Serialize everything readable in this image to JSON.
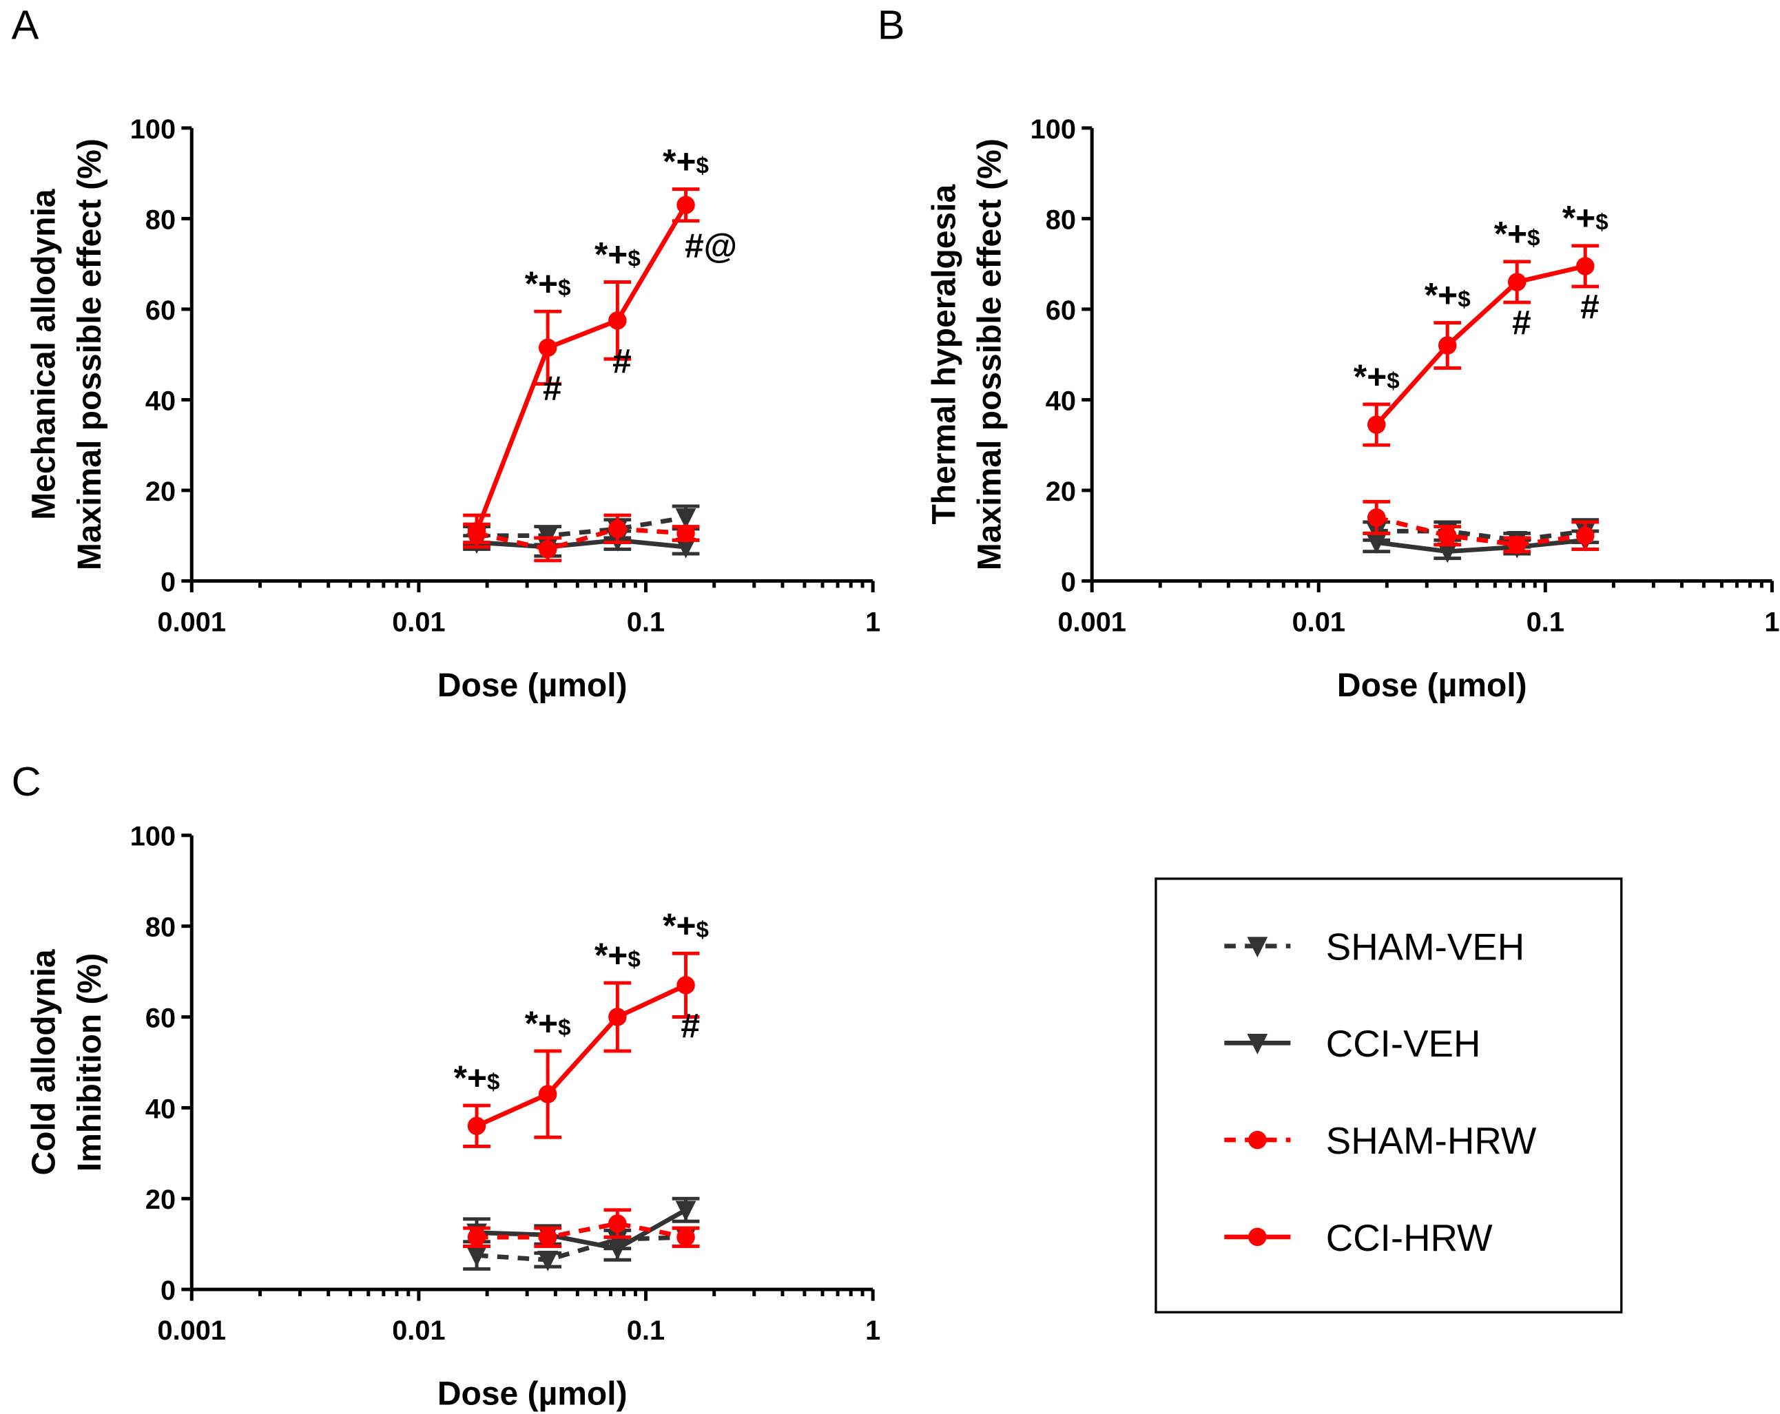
{
  "colors": {
    "veh": "#333333",
    "hrw": "#ff0000"
  },
  "legend": [
    {
      "name": "SHAM-VEH",
      "color": "#333333",
      "dashed": true,
      "marker": "triangle-down"
    },
    {
      "name": "CCI-VEH",
      "color": "#333333",
      "dashed": false,
      "marker": "triangle-down"
    },
    {
      "name": "SHAM-HRW",
      "color": "#ff0000",
      "dashed": true,
      "marker": "circle"
    },
    {
      "name": "CCI-HRW",
      "color": "#ff0000",
      "dashed": false,
      "marker": "circle"
    }
  ],
  "chart_data": [
    {
      "panel": "A",
      "type": "line",
      "xscale": "log",
      "xlim": [
        0.001,
        1
      ],
      "ylim": [
        0,
        100
      ],
      "xlabel": "Dose (µmol)",
      "ylabel": [
        "Mechanical allodynia",
        "Maximal possible effect (%)"
      ],
      "xticks": [
        "0.001",
        "0.01",
        "0.1",
        "1"
      ],
      "yticks": [
        "0",
        "20",
        "40",
        "60",
        "80",
        "100"
      ],
      "x": [
        0.018,
        0.037,
        0.075,
        0.15
      ],
      "series": [
        {
          "name": "SHAM-VEH",
          "values": [
            10,
            10,
            11.5,
            14
          ],
          "err": [
            2,
            2,
            2,
            2.5
          ]
        },
        {
          "name": "CCI-VEH",
          "values": [
            8.5,
            7.5,
            9,
            7.5
          ],
          "err": [
            1.5,
            2,
            2,
            1.5
          ]
        },
        {
          "name": "SHAM-HRW",
          "values": [
            10.5,
            7,
            11.5,
            10.5
          ],
          "err": [
            2,
            2.5,
            3,
            1.5
          ]
        },
        {
          "name": "CCI-HRW",
          "values": [
            11,
            51.5,
            57.5,
            83
          ],
          "err": [
            3.5,
            8,
            8.5,
            3.5
          ]
        }
      ],
      "annotations_above": [
        "",
        "*+$",
        "*+$",
        "*+$"
      ],
      "annotations_below": [
        "",
        "#",
        "#",
        "#@"
      ]
    },
    {
      "panel": "B",
      "type": "line",
      "xscale": "log",
      "xlim": [
        0.001,
        1
      ],
      "ylim": [
        0,
        100
      ],
      "xlabel": "Dose (µmol)",
      "ylabel": [
        "Thermal hyperalgesia",
        "Maximal possible effect (%)"
      ],
      "xticks": [
        "0.001",
        "0.01",
        "0.1",
        "1"
      ],
      "yticks": [
        "0",
        "20",
        "40",
        "60",
        "80",
        "100"
      ],
      "x": [
        0.018,
        0.037,
        0.075,
        0.15
      ],
      "series": [
        {
          "name": "SHAM-VEH",
          "values": [
            11,
            11,
            9,
            11
          ],
          "err": [
            2,
            2,
            1.5,
            2.5
          ]
        },
        {
          "name": "CCI-VEH",
          "values": [
            8.5,
            6.5,
            7.5,
            9
          ],
          "err": [
            2,
            1.5,
            1.5,
            2
          ]
        },
        {
          "name": "SHAM-HRW",
          "values": [
            14,
            10,
            8,
            10
          ],
          "err": [
            3.5,
            2,
            1.5,
            3
          ]
        },
        {
          "name": "CCI-HRW",
          "values": [
            34.5,
            52,
            66,
            69.5
          ],
          "err": [
            4.5,
            5,
            4.5,
            4.5
          ]
        }
      ],
      "annotations_above": [
        "*+$",
        "*+$",
        "*+$",
        "*+$"
      ],
      "annotations_below": [
        "",
        "",
        "#",
        "#"
      ]
    },
    {
      "panel": "C",
      "type": "line",
      "xscale": "log",
      "xlim": [
        0.001,
        1
      ],
      "ylim": [
        0,
        100
      ],
      "xlabel": "Dose (µmol)",
      "ylabel": [
        "Cold allodynia",
        "Imhibition (%)"
      ],
      "xticks": [
        "0.001",
        "0.01",
        "0.1",
        "1"
      ],
      "yticks": [
        "0",
        "20",
        "40",
        "60",
        "80",
        "100"
      ],
      "x": [
        0.018,
        0.037,
        0.075,
        0.15
      ],
      "series": [
        {
          "name": "SHAM-VEH",
          "values": [
            7.5,
            6.5,
            11,
            11.5
          ],
          "err": [
            3,
            1.5,
            2,
            2
          ]
        },
        {
          "name": "CCI-VEH",
          "values": [
            12.5,
            12,
            9,
            17.5
          ],
          "err": [
            3,
            2,
            2.5,
            2.5
          ]
        },
        {
          "name": "SHAM-HRW",
          "values": [
            11.5,
            11.5,
            14.5,
            11.5
          ],
          "err": [
            2,
            2,
            3,
            2
          ]
        },
        {
          "name": "CCI-HRW",
          "values": [
            36,
            43,
            60,
            67
          ],
          "err": [
            4.5,
            9.5,
            7.5,
            7
          ]
        }
      ],
      "annotations_above": [
        "*+$",
        "*+$",
        "*+$",
        "*+$"
      ],
      "annotations_below": [
        "",
        "",
        "",
        "#"
      ]
    }
  ]
}
